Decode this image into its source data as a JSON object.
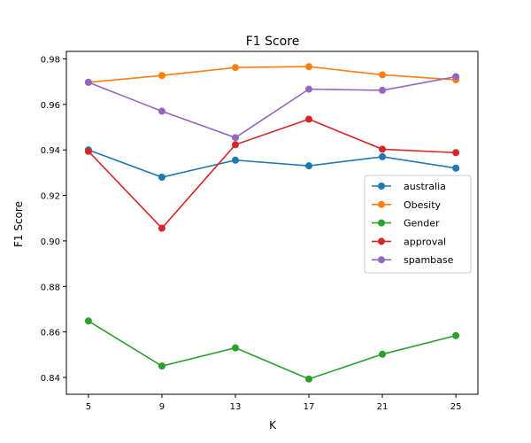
{
  "chart_data": {
    "type": "line",
    "title": "F1 Score",
    "xlabel": "K",
    "ylabel": "F1 Score",
    "x": [
      5,
      9,
      13,
      17,
      21,
      25
    ],
    "xlim": [
      3.8,
      26.2
    ],
    "ylim": [
      0.8326,
      0.9833
    ],
    "yticks": [
      0.84,
      0.86,
      0.88,
      0.9,
      0.92,
      0.94,
      0.96,
      0.98
    ],
    "ytick_labels": [
      "0.84",
      "0.86",
      "0.88",
      "0.90",
      "0.92",
      "0.94",
      "0.96",
      "0.98"
    ],
    "xtick_labels": [
      "5",
      "9",
      "13",
      "17",
      "21",
      "25"
    ],
    "grid": false,
    "legend_position": "center-right",
    "series": [
      {
        "name": "australia",
        "color": "#1f77b4",
        "values": [
          0.94,
          0.928,
          0.9355,
          0.933,
          0.937,
          0.932
        ]
      },
      {
        "name": "Obesity",
        "color": "#ff7f0e",
        "values": [
          0.9697,
          0.9727,
          0.9762,
          0.9766,
          0.973,
          0.9708
        ]
      },
      {
        "name": "Gender",
        "color": "#2ca02c",
        "values": [
          0.8648,
          0.845,
          0.853,
          0.8393,
          0.8502,
          0.8584
        ]
      },
      {
        "name": "approval",
        "color": "#d62728",
        "values": [
          0.9394,
          0.9056,
          0.9423,
          0.9535,
          0.9403,
          0.9388
        ]
      },
      {
        "name": "spambase",
        "color": "#9467bd",
        "values": [
          0.9697,
          0.957,
          0.9454,
          0.9667,
          0.9662,
          0.9722
        ]
      }
    ]
  }
}
